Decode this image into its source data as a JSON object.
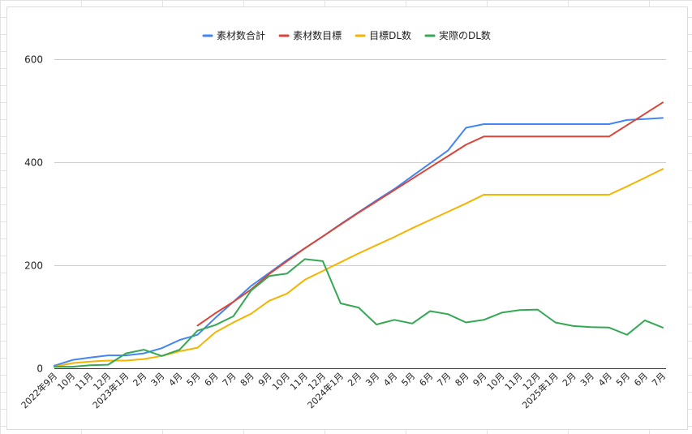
{
  "chart_data": {
    "type": "line",
    "title": "",
    "xlabel": "",
    "ylabel": "",
    "ylim": [
      0,
      600
    ],
    "yticks": [
      0,
      200,
      400,
      600
    ],
    "grid": true,
    "legend_position": "top",
    "categories": [
      "2022年9月",
      "10月",
      "11月",
      "12月",
      "2023年1月",
      "2月",
      "3月",
      "4月",
      "5月",
      "6月",
      "7月",
      "8月",
      "9月",
      "10月",
      "11月",
      "12月",
      "2024年1月",
      "2月",
      "3月",
      "4月",
      "5月",
      "6月",
      "7月",
      "8月",
      "9月",
      "10月",
      "11月",
      "12月",
      "2025年1月",
      "2月",
      "3月",
      "4月",
      "5月",
      "6月",
      "7月"
    ],
    "series": [
      {
        "name": "素材数合計",
        "color": "#4285f4",
        "values": [
          5,
          16,
          21,
          25,
          25,
          29,
          39,
          55,
          65,
          98,
          129,
          160,
          185,
          210,
          233,
          256,
          280,
          303,
          326,
          348,
          373,
          398,
          423,
          467,
          474,
          474,
          474,
          474,
          474,
          474,
          474,
          474,
          482,
          484,
          486
        ]
      },
      {
        "name": "素材数目標",
        "color": "#db4437",
        "values": [
          null,
          null,
          null,
          null,
          null,
          null,
          null,
          null,
          83,
          107,
          129,
          153,
          183,
          208,
          233,
          256,
          279,
          302,
          324,
          346,
          368,
          390,
          412,
          434,
          450,
          450,
          450,
          450,
          450,
          450,
          450,
          450,
          472,
          494,
          516
        ]
      },
      {
        "name": "目標DL数",
        "color": "#f4b400",
        "values": [
          3,
          10,
          13,
          15,
          15,
          18,
          24,
          33,
          40,
          70,
          89,
          106,
          131,
          145,
          172,
          189,
          206,
          223,
          239,
          255,
          272,
          288,
          304,
          320,
          337,
          337,
          337,
          337,
          337,
          337,
          337,
          337,
          353,
          370,
          387
        ]
      },
      {
        "name": "実際のDL数",
        "color": "#34a853",
        "values": [
          3,
          3,
          6,
          7,
          29,
          36,
          24,
          36,
          73,
          84,
          101,
          151,
          179,
          184,
          212,
          208,
          126,
          118,
          85,
          94,
          87,
          111,
          105,
          89,
          94,
          108,
          113,
          114,
          89,
          82,
          80,
          79,
          65,
          93,
          79
        ]
      }
    ]
  }
}
